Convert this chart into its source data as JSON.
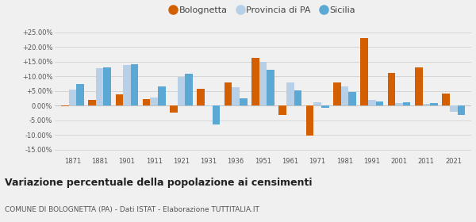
{
  "years": [
    1871,
    1881,
    1901,
    1911,
    1921,
    1931,
    1936,
    1951,
    1961,
    1971,
    1981,
    1991,
    2001,
    2011,
    2021
  ],
  "bolognetta": [
    -0.1,
    2.0,
    3.8,
    2.2,
    -2.3,
    5.8,
    8.0,
    16.3,
    -3.3,
    -10.3,
    8.0,
    23.0,
    11.3,
    13.2,
    4.2
  ],
  "provincia": [
    5.5,
    12.8,
    13.8,
    2.8,
    9.8,
    -0.1,
    6.2,
    15.0,
    8.0,
    1.2,
    6.5,
    2.0,
    0.8,
    0.5,
    -2.2
  ],
  "sicilia": [
    7.5,
    13.2,
    14.2,
    6.6,
    10.8,
    -6.5,
    2.5,
    12.2,
    5.2,
    -0.8,
    4.8,
    1.5,
    1.2,
    0.8,
    -3.2
  ],
  "color_bolognetta": "#d45f00",
  "color_provincia": "#b8cfe8",
  "color_sicilia": "#5ba8d4",
  "title": "Variazione percentuale della popolazione ai censimenti",
  "subtitle": "COMUNE DI BOLOGNETTA (PA) - Dati ISTAT - Elaborazione TUTTITALIA.IT",
  "ylim": [
    -17,
    27
  ],
  "yticks": [
    -15,
    -10,
    -5,
    0,
    5,
    10,
    15,
    20,
    25
  ],
  "ytick_labels": [
    "-15.00%",
    "-10.00%",
    "-5.00%",
    "0.00%",
    "+5.00%",
    "+10.00%",
    "+15.00%",
    "+20.00%",
    "+25.00%"
  ],
  "background_color": "#f0f0f0",
  "bar_width": 0.28
}
